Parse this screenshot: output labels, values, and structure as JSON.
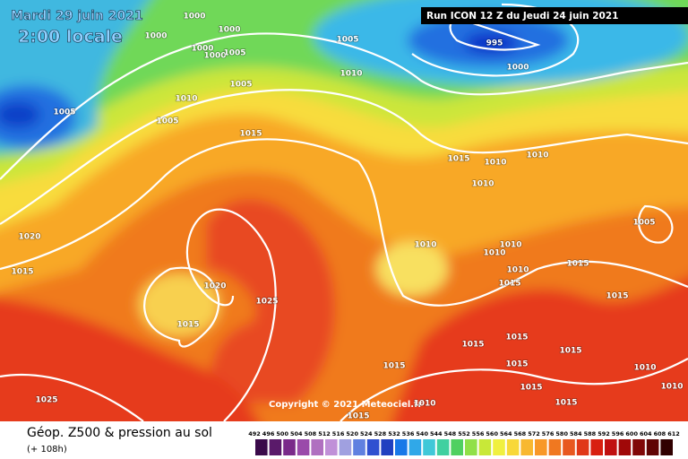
{
  "header": {
    "date": "Mardi 29 juin 2021",
    "time": "2:00 locale",
    "run": "Run ICON 12 Z du Jeudi 24 juin 2021"
  },
  "isobar_labels": [
    1000,
    1000,
    1000,
    1000,
    1000,
    1005,
    1005,
    995,
    1000,
    1010,
    1005,
    1005,
    1010,
    1005,
    1015,
    1015,
    1010,
    1010,
    1010,
    1005,
    1020,
    1015,
    1010,
    1010,
    1010,
    1010,
    1015,
    1015,
    1015,
    1020,
    1025,
    1015,
    1015,
    1015,
    1015,
    1015,
    1015,
    1010,
    1015,
    1015,
    1010,
    1025,
    1015,
    1010
  ],
  "copyright": "Copyright © 2021 Meteociel.fr",
  "legend": {
    "title": "Géop. Z500 & pression au sol",
    "lead": "(+ 108h)",
    "scale": [
      492,
      496,
      500,
      504,
      508,
      512,
      516,
      520,
      524,
      528,
      532,
      536,
      540,
      544,
      548,
      552,
      556,
      560,
      564,
      568,
      572,
      576,
      580,
      584,
      588,
      592,
      596,
      600,
      604,
      608,
      612
    ]
  }
}
